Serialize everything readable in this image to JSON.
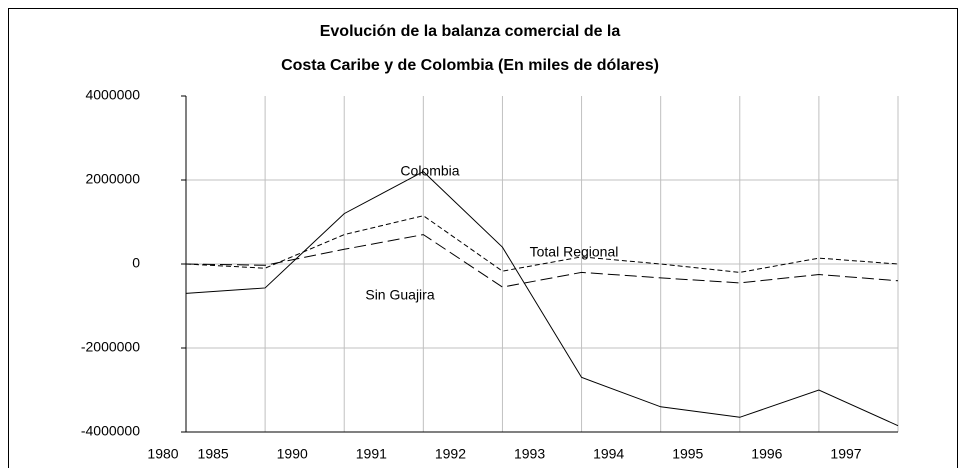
{
  "chart_data": {
    "type": "line",
    "title": [
      "Evolución de la balanza comercial de la",
      "Costa Caribe  y de Colombia (En miles de dólares)"
    ],
    "categories": [
      "1980",
      "1985",
      "1990",
      "1991",
      "1992",
      "1993",
      "1994",
      "1995",
      "1996",
      "1997"
    ],
    "series": [
      {
        "name": "Colombia",
        "color": "#000000",
        "dash": "solid",
        "values": [
          -700000,
          -570000,
          1200000,
          2200000,
          400000,
          -2700000,
          -3400000,
          -3650000,
          -3000000,
          -3850000
        ]
      },
      {
        "name": "Total Regional",
        "color": "#000000",
        "dash": "short",
        "values": [
          0,
          -100000,
          700000,
          1150000,
          -170000,
          170000,
          0,
          -200000,
          140000,
          0
        ]
      },
      {
        "name": "Sin Guajira",
        "color": "#000000",
        "dash": "long",
        "values": [
          0,
          -30000,
          350000,
          700000,
          -550000,
          -200000,
          -330000,
          -450000,
          -250000,
          -400000
        ]
      }
    ],
    "ylim": [
      -4000000,
      4000000
    ],
    "yticks": [
      -4000000,
      -2000000,
      0,
      2000000,
      4000000
    ],
    "grid": true
  }
}
